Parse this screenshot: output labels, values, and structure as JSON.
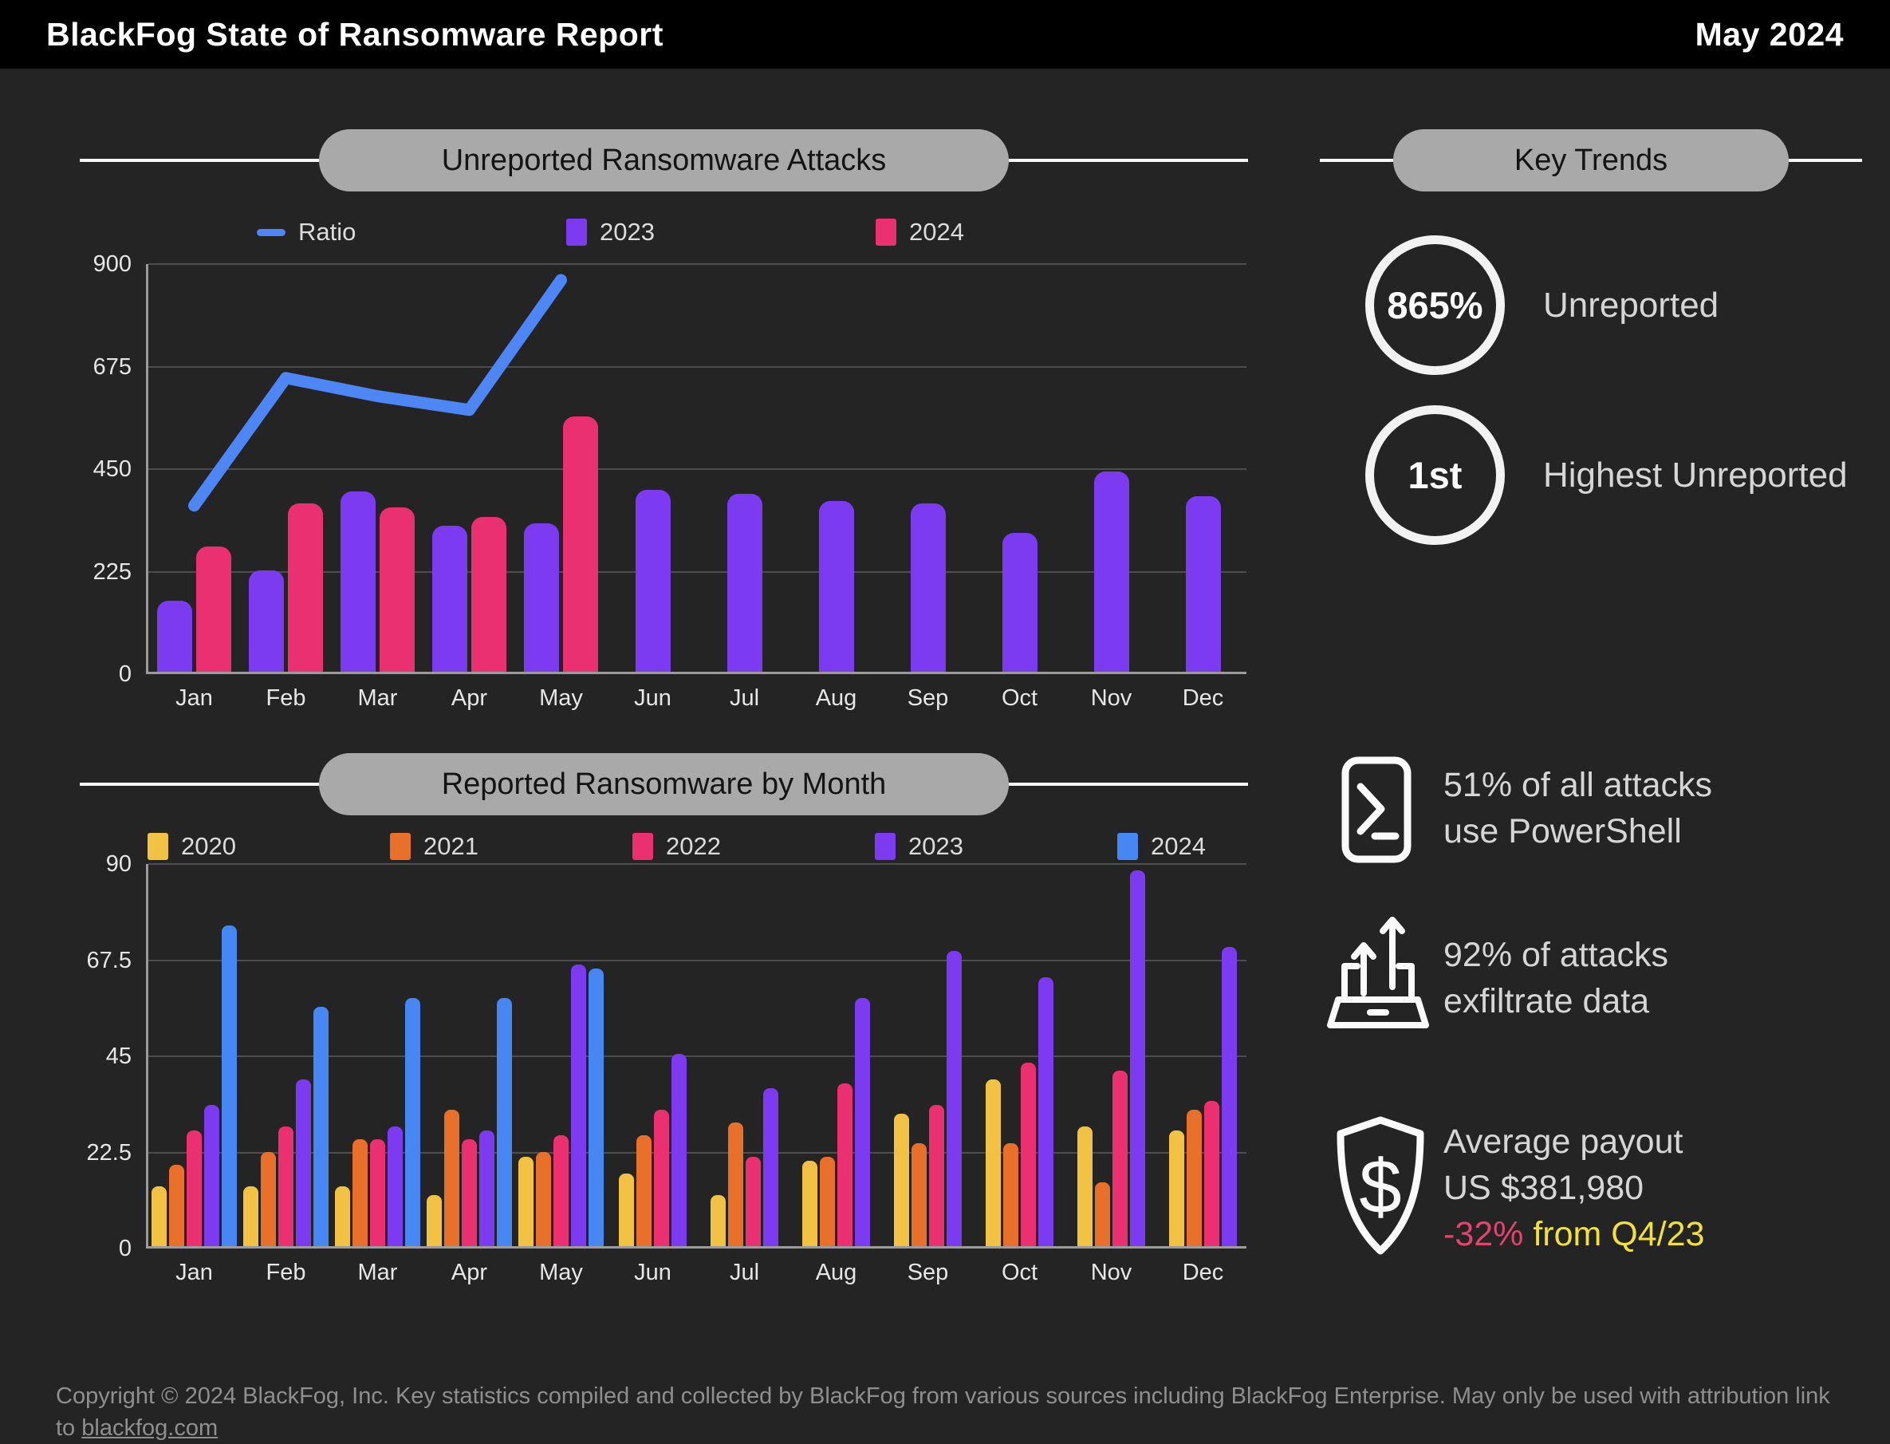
{
  "header": {
    "title": "BlackFog State of Ransomware Report",
    "date": "May 2024"
  },
  "chart_data": [
    {
      "type": "bar+line",
      "title": "Unreported Ransomware Attacks",
      "categories": [
        "Jan",
        "Feb",
        "Mar",
        "Apr",
        "May",
        "Jun",
        "Jul",
        "Aug",
        "Sep",
        "Oct",
        "Nov",
        "Dec"
      ],
      "y_ticks": [
        900,
        675,
        450,
        225,
        0
      ],
      "ylim": [
        0,
        900
      ],
      "grid": true,
      "legend_position": "top",
      "legend": [
        {
          "label": "Ratio",
          "type": "dash",
          "color": "#4e86f5"
        },
        {
          "label": "2023",
          "type": "square",
          "color": "#7c3bf0"
        },
        {
          "label": "2024",
          "type": "square",
          "color": "#ea3070"
        }
      ],
      "line": {
        "name": "Ratio",
        "color": "#4e86f5",
        "values": [
          370,
          650,
          610,
          580,
          865,
          null,
          null,
          null,
          null,
          null,
          null,
          null
        ]
      },
      "series": [
        {
          "name": "2023",
          "color": "#7c3bf0",
          "values": [
            155,
            222,
            395,
            320,
            325,
            400,
            390,
            375,
            370,
            305,
            440,
            385
          ]
        },
        {
          "name": "2024",
          "color": "#ea3070",
          "values": [
            275,
            370,
            360,
            340,
            560,
            null,
            null,
            null,
            null,
            null,
            null,
            null
          ]
        }
      ]
    },
    {
      "type": "bar",
      "title": "Reported Ransomware by Month",
      "categories": [
        "Jan",
        "Feb",
        "Mar",
        "Apr",
        "May",
        "Jun",
        "Jul",
        "Aug",
        "Sep",
        "Oct",
        "Nov",
        "Dec"
      ],
      "y_ticks": [
        90,
        67.5,
        45,
        22.5,
        0
      ],
      "ylim": [
        0,
        90
      ],
      "grid": true,
      "legend_position": "top",
      "legend": [
        {
          "label": "2020",
          "type": "square",
          "color": "#f2c244"
        },
        {
          "label": "2021",
          "type": "square",
          "color": "#e9702b"
        },
        {
          "label": "2022",
          "type": "square",
          "color": "#ea3070"
        },
        {
          "label": "2023",
          "type": "square",
          "color": "#7c3bf0"
        },
        {
          "label": "2024",
          "type": "square",
          "color": "#4787f3"
        }
      ],
      "series": [
        {
          "name": "2020",
          "color": "#f2c244",
          "values": [
            14,
            14,
            14,
            12,
            21,
            17,
            12,
            20,
            31,
            39,
            28,
            27
          ]
        },
        {
          "name": "2021",
          "color": "#e9702b",
          "values": [
            19,
            22,
            25,
            32,
            22,
            26,
            29,
            21,
            24,
            24,
            15,
            32
          ]
        },
        {
          "name": "2022",
          "color": "#ea3070",
          "values": [
            27,
            28,
            25,
            25,
            26,
            32,
            21,
            38,
            33,
            43,
            41,
            34
          ]
        },
        {
          "name": "2023",
          "color": "#7c3bf0",
          "values": [
            33,
            39,
            28,
            27,
            66,
            45,
            37,
            58,
            69,
            63,
            88,
            70
          ]
        },
        {
          "name": "2024",
          "color": "#4787f3",
          "values": [
            75,
            56,
            58,
            58,
            65,
            null,
            null,
            null,
            null,
            null,
            null,
            null
          ]
        }
      ]
    }
  ],
  "key_trends": {
    "title": "Key Trends",
    "circles": [
      {
        "value": "865%",
        "label": "Unreported"
      },
      {
        "value": "1st",
        "label": "Highest Unreported"
      }
    ],
    "stats": [
      {
        "icon": "powershell-icon",
        "lines": [
          "51% of all attacks",
          "use PowerShell"
        ]
      },
      {
        "icon": "data-exfiltration-icon",
        "lines": [
          "92% of attacks",
          "exfiltrate data"
        ]
      },
      {
        "icon": "payout-shield-icon",
        "lines": [
          "Average payout",
          "US $381,980"
        ],
        "highlight": {
          "value": "-32%",
          "suffix": " from Q4/23",
          "value_color": "#e0446f",
          "suffix_color": "#f1e13c"
        }
      }
    ]
  },
  "footer": {
    "text_before_link": "Copyright © 2024 BlackFog, Inc. Key statistics compiled and collected by BlackFog from various sources including BlackFog Enterprise. May only be used with attribution link to ",
    "link": "blackfog.com"
  }
}
